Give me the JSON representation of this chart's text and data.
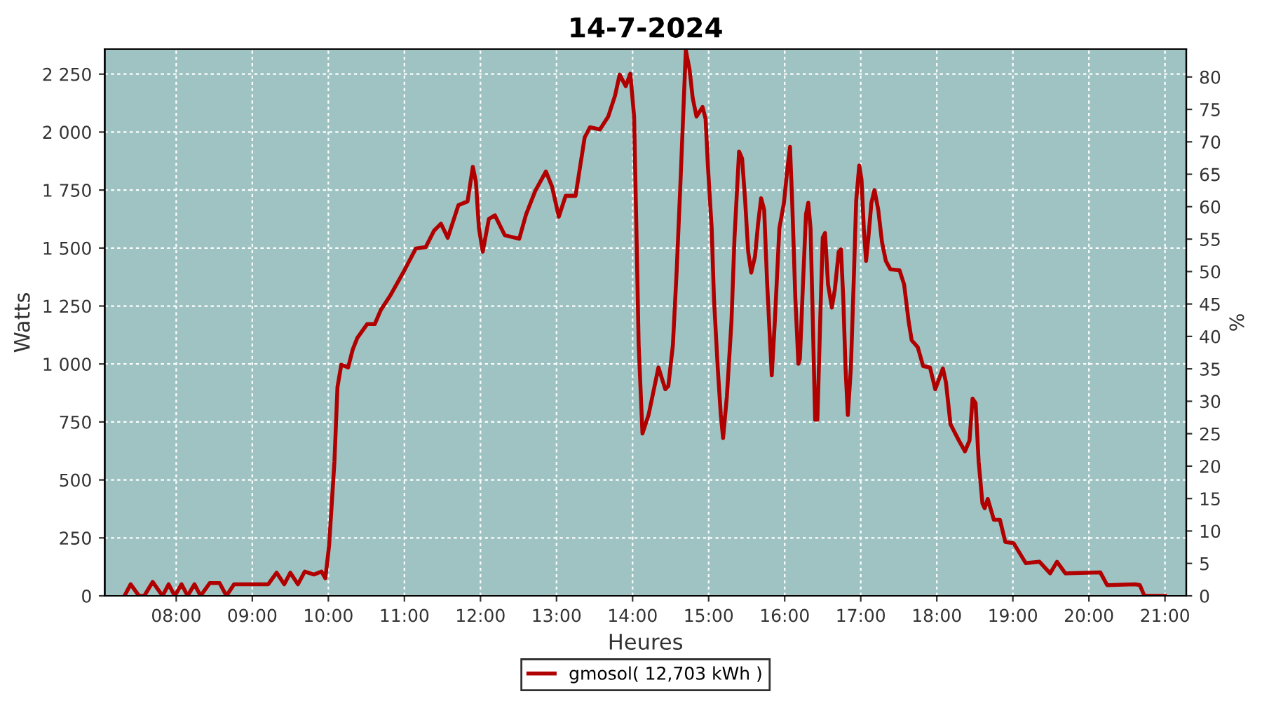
{
  "chart_data": {
    "type": "line",
    "title": "14-7-2024",
    "xlabel": "Heures",
    "ylabel": "Watts",
    "y2label": "%",
    "xlim": [
      7.06,
      21.28
    ],
    "xticks": [
      {
        "value": 8,
        "label": "08:00"
      },
      {
        "value": 9,
        "label": "09:00"
      },
      {
        "value": 10,
        "label": "10:00"
      },
      {
        "value": 11,
        "label": "11:00"
      },
      {
        "value": 12,
        "label": "12:00"
      },
      {
        "value": 13,
        "label": "13:00"
      },
      {
        "value": 14,
        "label": "14:00"
      },
      {
        "value": 15,
        "label": "15:00"
      },
      {
        "value": 16,
        "label": "16:00"
      },
      {
        "value": 17,
        "label": "17:00"
      },
      {
        "value": 18,
        "label": "18:00"
      },
      {
        "value": 19,
        "label": "19:00"
      },
      {
        "value": 20,
        "label": "20:00"
      },
      {
        "value": 21,
        "label": "21:00"
      }
    ],
    "ylim": [
      0,
      2358
    ],
    "yticks": [
      0,
      250,
      500,
      750,
      {
        "value": 1000,
        "label": "1 000"
      },
      {
        "value": 1250,
        "label": "1 250"
      },
      {
        "value": 1500,
        "label": "1 500"
      },
      {
        "value": 1750,
        "label": "1 750"
      },
      {
        "value": 2000,
        "label": "2 000"
      },
      {
        "value": 2250,
        "label": "2 250"
      }
    ],
    "y2lim": [
      0,
      84.3
    ],
    "y2ticks": [
      0,
      5,
      10,
      15,
      20,
      25,
      30,
      35,
      40,
      45,
      50,
      55,
      60,
      65,
      70,
      75,
      80
    ],
    "grid": true,
    "legend": "bottom",
    "line_style": "solid",
    "marker": "none",
    "series": [
      {
        "name": "gmosol( 12,703 kWh )",
        "color": "#b00000",
        "x": [
          7.32,
          7.4,
          7.51,
          7.58,
          7.69,
          7.82,
          7.9,
          7.98,
          8.07,
          8.15,
          8.24,
          8.32,
          8.44,
          8.57,
          8.66,
          8.76,
          9.21,
          9.32,
          9.42,
          9.5,
          9.6,
          9.69,
          9.81,
          9.91,
          9.96,
          10.01,
          10.08,
          10.12,
          10.17,
          10.26,
          10.32,
          10.38,
          10.51,
          10.61,
          10.69,
          10.81,
          11.0,
          11.15,
          11.28,
          11.39,
          11.48,
          11.57,
          11.71,
          11.83,
          11.9,
          11.94,
          11.98,
          12.03,
          12.11,
          12.19,
          12.32,
          12.51,
          12.6,
          12.72,
          12.86,
          12.94,
          13.03,
          13.12,
          13.25,
          13.37,
          13.44,
          13.57,
          13.68,
          13.77,
          13.83,
          13.91,
          13.97,
          14.02,
          14.05,
          14.08,
          14.13,
          14.21,
          14.34,
          14.43,
          14.47,
          14.53,
          14.58,
          14.63,
          14.7,
          14.75,
          14.79,
          14.84,
          14.92,
          14.96,
          14.99,
          15.04,
          15.07,
          15.12,
          15.16,
          15.19,
          15.24,
          15.3,
          15.34,
          15.4,
          15.44,
          15.48,
          15.52,
          15.56,
          15.61,
          15.65,
          15.69,
          15.73,
          15.77,
          15.81,
          15.83,
          15.87,
          15.93,
          15.99,
          16.04,
          16.07,
          16.1,
          16.14,
          16.18,
          16.2,
          16.24,
          16.28,
          16.31,
          16.34,
          16.37,
          16.4,
          16.43,
          16.47,
          16.5,
          16.53,
          16.57,
          16.62,
          16.66,
          16.71,
          16.74,
          16.77,
          16.8,
          16.83,
          16.87,
          16.91,
          16.94,
          16.98,
          17.01,
          17.04,
          17.07,
          17.1,
          17.14,
          17.18,
          17.23,
          17.28,
          17.33,
          17.39,
          17.51,
          17.57,
          17.63,
          17.67,
          17.75,
          17.82,
          17.91,
          17.98,
          18.08,
          18.12,
          18.18,
          18.29,
          18.37,
          18.43,
          18.47,
          18.51,
          18.55,
          18.6,
          18.63,
          18.67,
          18.75,
          18.83,
          18.9,
          19.01,
          19.17,
          19.35,
          19.49,
          19.58,
          19.69,
          20.15,
          20.24,
          20.61,
          20.67,
          20.73,
          21.0
        ],
        "values": [
          0,
          50,
          0,
          0,
          60,
          0,
          50,
          0,
          50,
          0,
          50,
          0,
          55,
          55,
          0,
          50,
          50,
          100,
          50,
          100,
          50,
          105,
          92,
          105,
          76,
          217,
          579,
          901,
          997,
          985,
          1062,
          1112,
          1172,
          1172,
          1233,
          1293,
          1404,
          1498,
          1504,
          1575,
          1605,
          1544,
          1685,
          1701,
          1850,
          1786,
          1585,
          1484,
          1625,
          1641,
          1555,
          1540,
          1645,
          1746,
          1830,
          1766,
          1635,
          1725,
          1725,
          1977,
          2021,
          2011,
          2067,
          2158,
          2248,
          2198,
          2252,
          2067,
          1585,
          1082,
          700,
          780,
          985,
          891,
          905,
          1082,
          1404,
          1786,
          2353,
          2268,
          2148,
          2067,
          2108,
          2057,
          1856,
          1585,
          1283,
          981,
          780,
          680,
          861,
          1182,
          1544,
          1916,
          1886,
          1705,
          1484,
          1394,
          1464,
          1605,
          1715,
          1665,
          1343,
          1082,
          951,
          1182,
          1585,
          1695,
          1856,
          1936,
          1685,
          1283,
          1001,
          1022,
          1343,
          1645,
          1695,
          1585,
          1182,
          760,
          760,
          1222,
          1544,
          1565,
          1343,
          1243,
          1323,
          1484,
          1494,
          1283,
          981,
          780,
          981,
          1383,
          1705,
          1856,
          1796,
          1585,
          1444,
          1544,
          1695,
          1750,
          1665,
          1524,
          1444,
          1408,
          1404,
          1343,
          1182,
          1102,
          1072,
          991,
          985,
          891,
          981,
          921,
          740,
          670,
          623,
          670,
          851,
          831,
          579,
          398,
          378,
          418,
          328,
          328,
          233,
          227,
          141,
          147,
          97,
          147,
          97,
          101,
          46,
          50,
          46,
          0,
          0
        ]
      }
    ]
  }
}
